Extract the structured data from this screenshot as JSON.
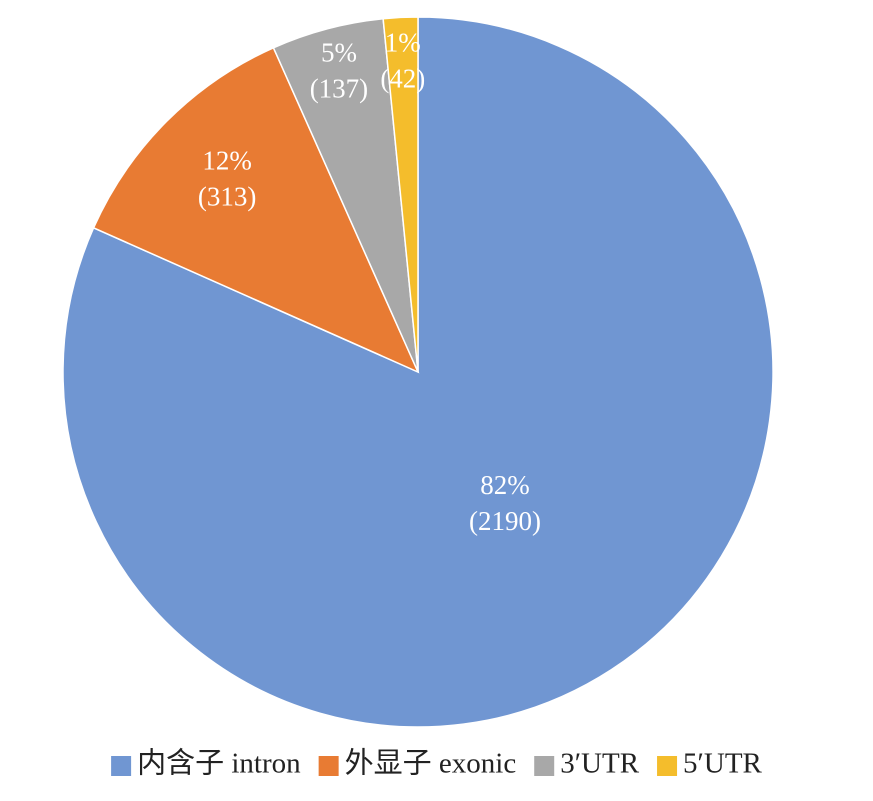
{
  "chart_data": {
    "type": "pie",
    "categories": [
      "内含子 intron",
      "外显子 exonic",
      "3′UTR",
      "5′UTR"
    ],
    "values": [
      2190,
      313,
      137,
      42
    ],
    "value_labels": [
      "(2190)",
      "(313)",
      "(137)",
      "(42)"
    ],
    "percents": [
      82,
      12,
      5,
      1
    ],
    "percent_labels": [
      "82%",
      "12%",
      "5%",
      "1%"
    ],
    "colors": [
      "#7096d2",
      "#e87b33",
      "#a8a8a8",
      "#f4bd2c"
    ],
    "legend": "bottom"
  }
}
